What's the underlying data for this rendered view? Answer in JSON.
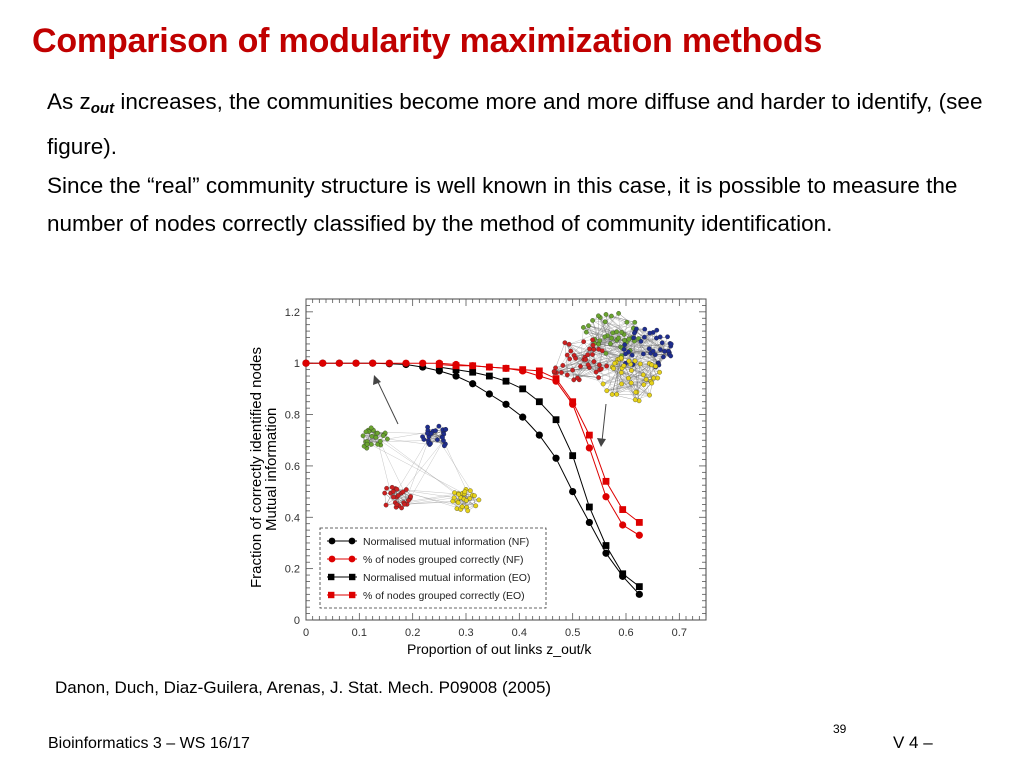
{
  "slide": {
    "title": "Comparison of modularity maximization methods",
    "paragraph1": {
      "pre": "As z",
      "sub": "out",
      "post": " increases, the communities become more and more diffuse and harder to identify, (see figure)."
    },
    "paragraph2": "Since the “real” community structure is well known in this case, it is possible to measure the number of nodes correctly classified by the method of community identification.",
    "citation": "Danon, Duch, Diaz-Guilera, Arenas, J. Stat. Mech. P09008 (2005)",
    "footer_left": "Bioinformatics 3 – WS 16/17",
    "page_number": "39",
    "footer_right": "V 4 –"
  },
  "colors": {
    "title": "#c00000",
    "series_black": "#000000",
    "series_red": "#dd0000",
    "community_green": "#6aa330",
    "community_blue": "#1e2d8f",
    "community_red": "#cc2020",
    "community_yellow": "#e6d21a"
  },
  "chart_data": {
    "type": "line",
    "xlabel": "Proportion of out links z_out/k",
    "ylabel_outer": "Fraction of correctly identified nodes",
    "ylabel_inner": "Mutual information",
    "xlim": [
      0,
      0.75
    ],
    "ylim": [
      0,
      1.25
    ],
    "xticks": [
      "0",
      "0.1",
      "0.2",
      "0.3",
      "0.4",
      "0.5",
      "0.6",
      "0.7"
    ],
    "yticks": [
      "0",
      "0.2",
      "0.4",
      "0.6",
      "0.8",
      "1",
      "1.2"
    ],
    "legend_position": "bottom-left",
    "series": [
      {
        "name": "Normalised mutual information (NF)",
        "marker": "circle",
        "color": "#000000",
        "x": [
          0,
          0.0313,
          0.0625,
          0.0938,
          0.125,
          0.1563,
          0.1875,
          0.2188,
          0.25,
          0.2813,
          0.3125,
          0.3438,
          0.375,
          0.4063,
          0.4375,
          0.4688,
          0.5,
          0.5313,
          0.5625,
          0.5938,
          0.625
        ],
        "y": [
          1.0,
          1.0,
          1.0,
          1.0,
          1.0,
          0.998,
          0.995,
          0.985,
          0.97,
          0.95,
          0.92,
          0.88,
          0.84,
          0.79,
          0.72,
          0.63,
          0.5,
          0.38,
          0.26,
          0.17,
          0.1
        ]
      },
      {
        "name": "% of nodes grouped correctly (NF)",
        "marker": "circle",
        "color": "#dd0000",
        "x": [
          0,
          0.0313,
          0.0625,
          0.0938,
          0.125,
          0.1563,
          0.1875,
          0.2188,
          0.25,
          0.2813,
          0.3125,
          0.3438,
          0.375,
          0.4063,
          0.4375,
          0.4688,
          0.5,
          0.5313,
          0.5625,
          0.5938,
          0.625
        ],
        "y": [
          1.0,
          1.0,
          1.0,
          1.0,
          1.0,
          1.0,
          1.0,
          1.0,
          1.0,
          0.995,
          0.99,
          0.985,
          0.98,
          0.97,
          0.95,
          0.93,
          0.84,
          0.67,
          0.48,
          0.37,
          0.33
        ]
      },
      {
        "name": "Normalised mutual information (EO)",
        "marker": "square",
        "color": "#000000",
        "x": [
          0.25,
          0.2813,
          0.3125,
          0.3438,
          0.375,
          0.4063,
          0.4375,
          0.4688,
          0.5,
          0.5313,
          0.5625,
          0.5938,
          0.625
        ],
        "y": [
          0.985,
          0.975,
          0.965,
          0.95,
          0.93,
          0.9,
          0.85,
          0.78,
          0.64,
          0.44,
          0.29,
          0.18,
          0.13
        ]
      },
      {
        "name": "% of nodes grouped correctly (EO)",
        "marker": "square",
        "color": "#dd0000",
        "x": [
          0.25,
          0.2813,
          0.3125,
          0.3438,
          0.375,
          0.4063,
          0.4375,
          0.4688,
          0.5,
          0.5313,
          0.5625,
          0.5938,
          0.625
        ],
        "y": [
          0.995,
          0.99,
          0.99,
          0.985,
          0.98,
          0.975,
          0.97,
          0.94,
          0.85,
          0.72,
          0.54,
          0.43,
          0.38
        ]
      }
    ]
  }
}
